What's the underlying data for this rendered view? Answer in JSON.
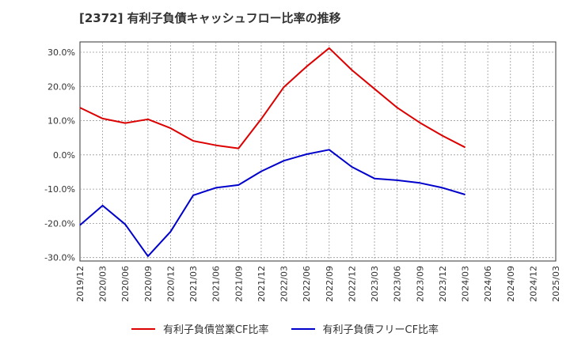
{
  "chart_data": {
    "type": "line",
    "title": "[2372]  有利子負債キャッシュフロー比率の推移",
    "x": [
      "2019/12",
      "2020/03",
      "2020/06",
      "2020/09",
      "2020/12",
      "2021/03",
      "2021/06",
      "2021/09",
      "2021/12",
      "2022/03",
      "2022/06",
      "2022/09",
      "2022/12",
      "2023/03",
      "2023/06",
      "2023/09",
      "2023/12",
      "2024/03",
      "2024/06",
      "2024/09",
      "2024/12",
      "2025/03"
    ],
    "series": [
      {
        "name": "有利子負債営業CF比率",
        "color": "#dd0000",
        "values": [
          13.8,
          10.6,
          9.3,
          10.4,
          7.8,
          4.1,
          2.8,
          1.9,
          10.5,
          19.8,
          25.8,
          31.2,
          24.8,
          19.3,
          13.8,
          9.4,
          5.6,
          2.2,
          null,
          null,
          null,
          null
        ]
      },
      {
        "name": "有利子負債フリーCF比率",
        "color": "#0000cc",
        "values": [
          -20.5,
          -14.8,
          -20.3,
          -29.6,
          -22.4,
          -11.8,
          -9.6,
          -8.8,
          -4.8,
          -1.7,
          0.2,
          1.5,
          -3.5,
          -6.9,
          -7.4,
          -8.2,
          -9.6,
          -11.6,
          null,
          null,
          null,
          null
        ]
      }
    ],
    "ylim": [
      -31,
      33
    ],
    "yticks": [
      -30,
      -20,
      -10,
      0,
      10,
      20,
      30
    ],
    "ytick_labels": [
      "-30.0%",
      "-20.0%",
      "-10.0%",
      "0.0%",
      "10.0%",
      "20.0%",
      "30.0%"
    ],
    "grid": true,
    "legend_position": "bottom"
  }
}
